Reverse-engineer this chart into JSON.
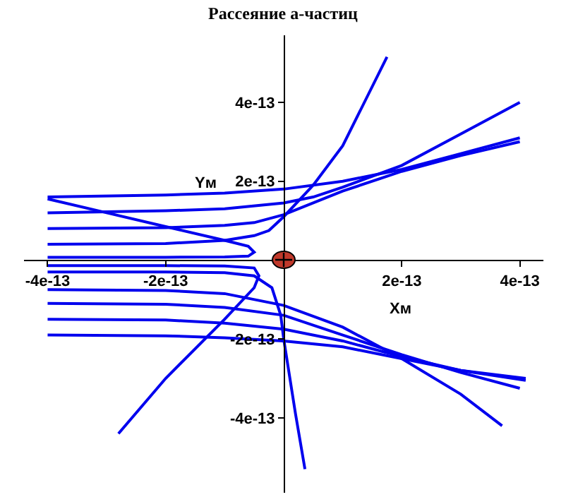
{
  "chart_data": {
    "type": "line",
    "title": "Рассеяние а-частиц",
    "xlabel": "Xм",
    "ylabel": "Yм",
    "xlim": [
      -4.4e-13,
      4.4e-13
    ],
    "ylim": [
      -5.9e-13,
      5.7e-13
    ],
    "xticks": [
      -4e-13,
      -2e-13,
      2e-13,
      4e-13
    ],
    "yticks": [
      -4e-13,
      -2e-13,
      2e-13,
      4e-13
    ],
    "grid": false,
    "marker": "none",
    "line_style": "solid",
    "series": [
      {
        "color": "#0000ee",
        "x": [
          -4e-13,
          -2e-13,
          -1e-13,
          0,
          1e-13,
          2e-13,
          3e-13,
          4e-13
        ],
        "values": [
          1.6e-13,
          1.65e-13,
          1.7e-13,
          1.8e-13,
          2e-13,
          2.3e-13,
          2.7e-13,
          3.1e-13
        ]
      },
      {
        "color": "#0000ee",
        "x": [
          -4e-13,
          -2e-13,
          -1e-13,
          0,
          5e-14,
          1e-13,
          2e-13,
          3e-13,
          4e-13
        ],
        "values": [
          1.2e-13,
          1.25e-13,
          1.3e-13,
          1.45e-13,
          1.6e-13,
          1.85e-13,
          2.4e-13,
          3.2e-13,
          4e-13
        ]
      },
      {
        "color": "#0000ee",
        "x": [
          -4e-13,
          -2e-13,
          -1e-13,
          -5e-14,
          0,
          5e-14,
          1e-13,
          2e-13,
          3e-13,
          4e-13
        ],
        "values": [
          8e-14,
          8.2e-14,
          8.8e-14,
          9.5e-14,
          1.15e-13,
          1.45e-13,
          1.75e-13,
          2.25e-13,
          2.65e-13,
          3e-13
        ]
      },
      {
        "color": "#0000ee",
        "x": [
          -4e-13,
          -2e-13,
          -1e-13,
          -5e-14,
          -2.5e-14,
          0,
          5e-14,
          1e-13,
          1.75e-13
        ],
        "values": [
          4e-14,
          4.2e-14,
          5e-14,
          6.2e-14,
          7.5e-14,
          1.1e-13,
          1.9e-13,
          2.9e-13,
          5.15e-13
        ]
      },
      {
        "color": "#0000ee",
        "x": [
          -4e-13,
          -2e-13,
          -1e-13,
          -6e-14,
          -5e-14,
          -6e-14,
          -1e-13,
          -2e-13,
          -3e-13,
          -4e-13
        ],
        "values": [
          7e-15,
          7e-15,
          8e-15,
          1e-14,
          2e-14,
          3.5e-14,
          5e-14,
          8.5e-14,
          1.2e-13,
          1.55e-13
        ]
      },
      {
        "color": "#0000ee",
        "x": [
          -4e-13,
          -2e-13,
          -1e-13,
          -5e-14,
          -4.2e-14,
          -5e-14,
          -1e-13,
          -2e-13,
          -2.8e-13
        ],
        "values": [
          -1.4e-14,
          -1.4e-14,
          -1.5e-14,
          -2e-14,
          -4e-14,
          -7e-14,
          -1.5e-13,
          -3e-13,
          -4.4e-13
        ]
      },
      {
        "color": "#0000ee",
        "x": [
          -4e-13,
          -2e-13,
          -1e-13,
          -5e-14,
          -2e-14,
          -5e-15,
          0,
          2e-14,
          3.6e-14
        ],
        "values": [
          -3e-14,
          -3e-14,
          -3.2e-14,
          -4e-14,
          -7e-14,
          -1.4e-13,
          -2e-13,
          -3.9e-13,
          -5.3e-13
        ]
      },
      {
        "color": "#0000ee",
        "x": [
          -4e-13,
          -2e-13,
          -1e-13,
          0,
          1e-13,
          2e-13,
          3e-13,
          3.7e-13
        ],
        "values": [
          -7.5e-14,
          -7.7e-14,
          -8.5e-14,
          -1.15e-13,
          -1.7e-13,
          -2.5e-13,
          -3.4e-13,
          -4.2e-13
        ]
      },
      {
        "color": "#0000ee",
        "x": [
          -4e-13,
          -2e-13,
          -1e-13,
          0,
          1e-13,
          2e-13,
          3e-13,
          4e-13
        ],
        "values": [
          -1.1e-13,
          -1.12e-13,
          -1.2e-13,
          -1.4e-13,
          -1.9e-13,
          -2.4e-13,
          -2.85e-13,
          -3.25e-13
        ]
      },
      {
        "color": "#0000ee",
        "x": [
          -4e-13,
          -2e-13,
          -1e-13,
          0,
          1e-13,
          2e-13,
          3e-13,
          4.1e-13
        ],
        "values": [
          -1.5e-13,
          -1.52e-13,
          -1.6e-13,
          -1.75e-13,
          -2.05e-13,
          -2.45e-13,
          -2.8e-13,
          -3e-13
        ]
      },
      {
        "color": "#0000ee",
        "x": [
          -4e-13,
          -2e-13,
          -1e-13,
          0,
          1e-13,
          2e-13,
          3e-13,
          4.1e-13
        ],
        "values": [
          -1.9e-13,
          -1.92e-13,
          -1.97e-13,
          -2.05e-13,
          -2.2e-13,
          -2.5e-13,
          -2.8e-13,
          -3.05e-13
        ]
      }
    ]
  }
}
